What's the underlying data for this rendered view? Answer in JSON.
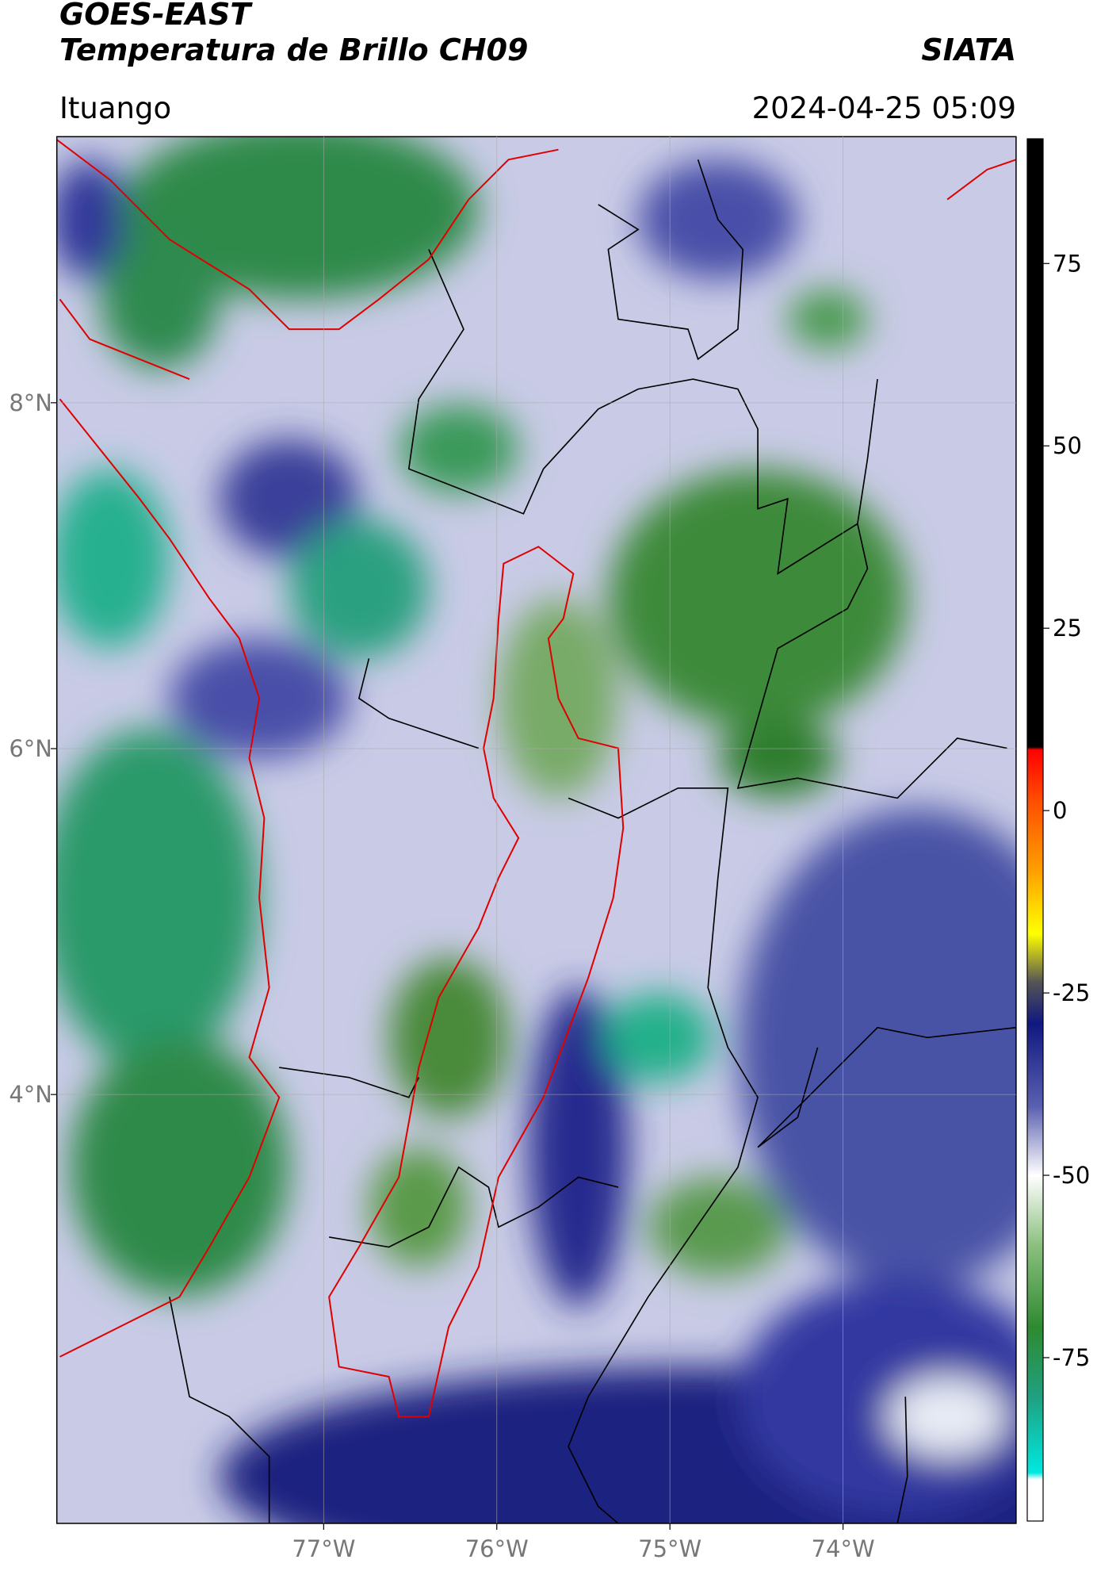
{
  "header": {
    "satellite": "GOES-EAST",
    "product": "Temperatura de Brillo CH09",
    "organization": "SIATA",
    "region": "Ituango",
    "datetime": "2024-04-25 05:09"
  },
  "map": {
    "xlim": [
      -78.54,
      -73.0
    ],
    "ylim": [
      1.52,
      9.54
    ],
    "xticks": [
      {
        "value": -77,
        "label": "77°W"
      },
      {
        "value": -76,
        "label": "76°W"
      },
      {
        "value": -75,
        "label": "75°W"
      },
      {
        "value": -74,
        "label": "74°W"
      }
    ],
    "yticks": [
      {
        "value": 8,
        "label": "8°N"
      },
      {
        "value": 6,
        "label": "6°N"
      },
      {
        "value": 4,
        "label": "4°N"
      }
    ],
    "grid": true
  },
  "colorbar": {
    "lim": [
      -97.4,
      92.1
    ],
    "ticks": [
      75,
      50,
      25,
      0,
      -25,
      -50,
      -75
    ]
  }
}
